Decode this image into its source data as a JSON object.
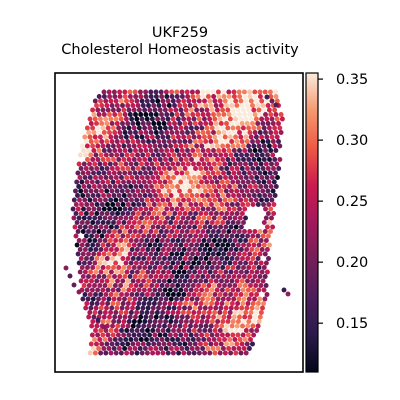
{
  "chart_data": {
    "type": "heatmap",
    "title": "UKF259",
    "subtitle": "Cholesterol Homeostasis activity",
    "xlabel": "",
    "ylabel": "",
    "colormap": "rocket",
    "colorbar": {
      "min": 0.11,
      "max": 0.355,
      "ticks": [
        0.15,
        0.2,
        0.25,
        0.3,
        0.35
      ],
      "tick_labels": [
        "0.15",
        "0.20",
        "0.25",
        "0.30",
        "0.35"
      ]
    },
    "value_range_observed": [
      0.11,
      0.35
    ],
    "grid": false,
    "legend": "colorbar at right"
  }
}
